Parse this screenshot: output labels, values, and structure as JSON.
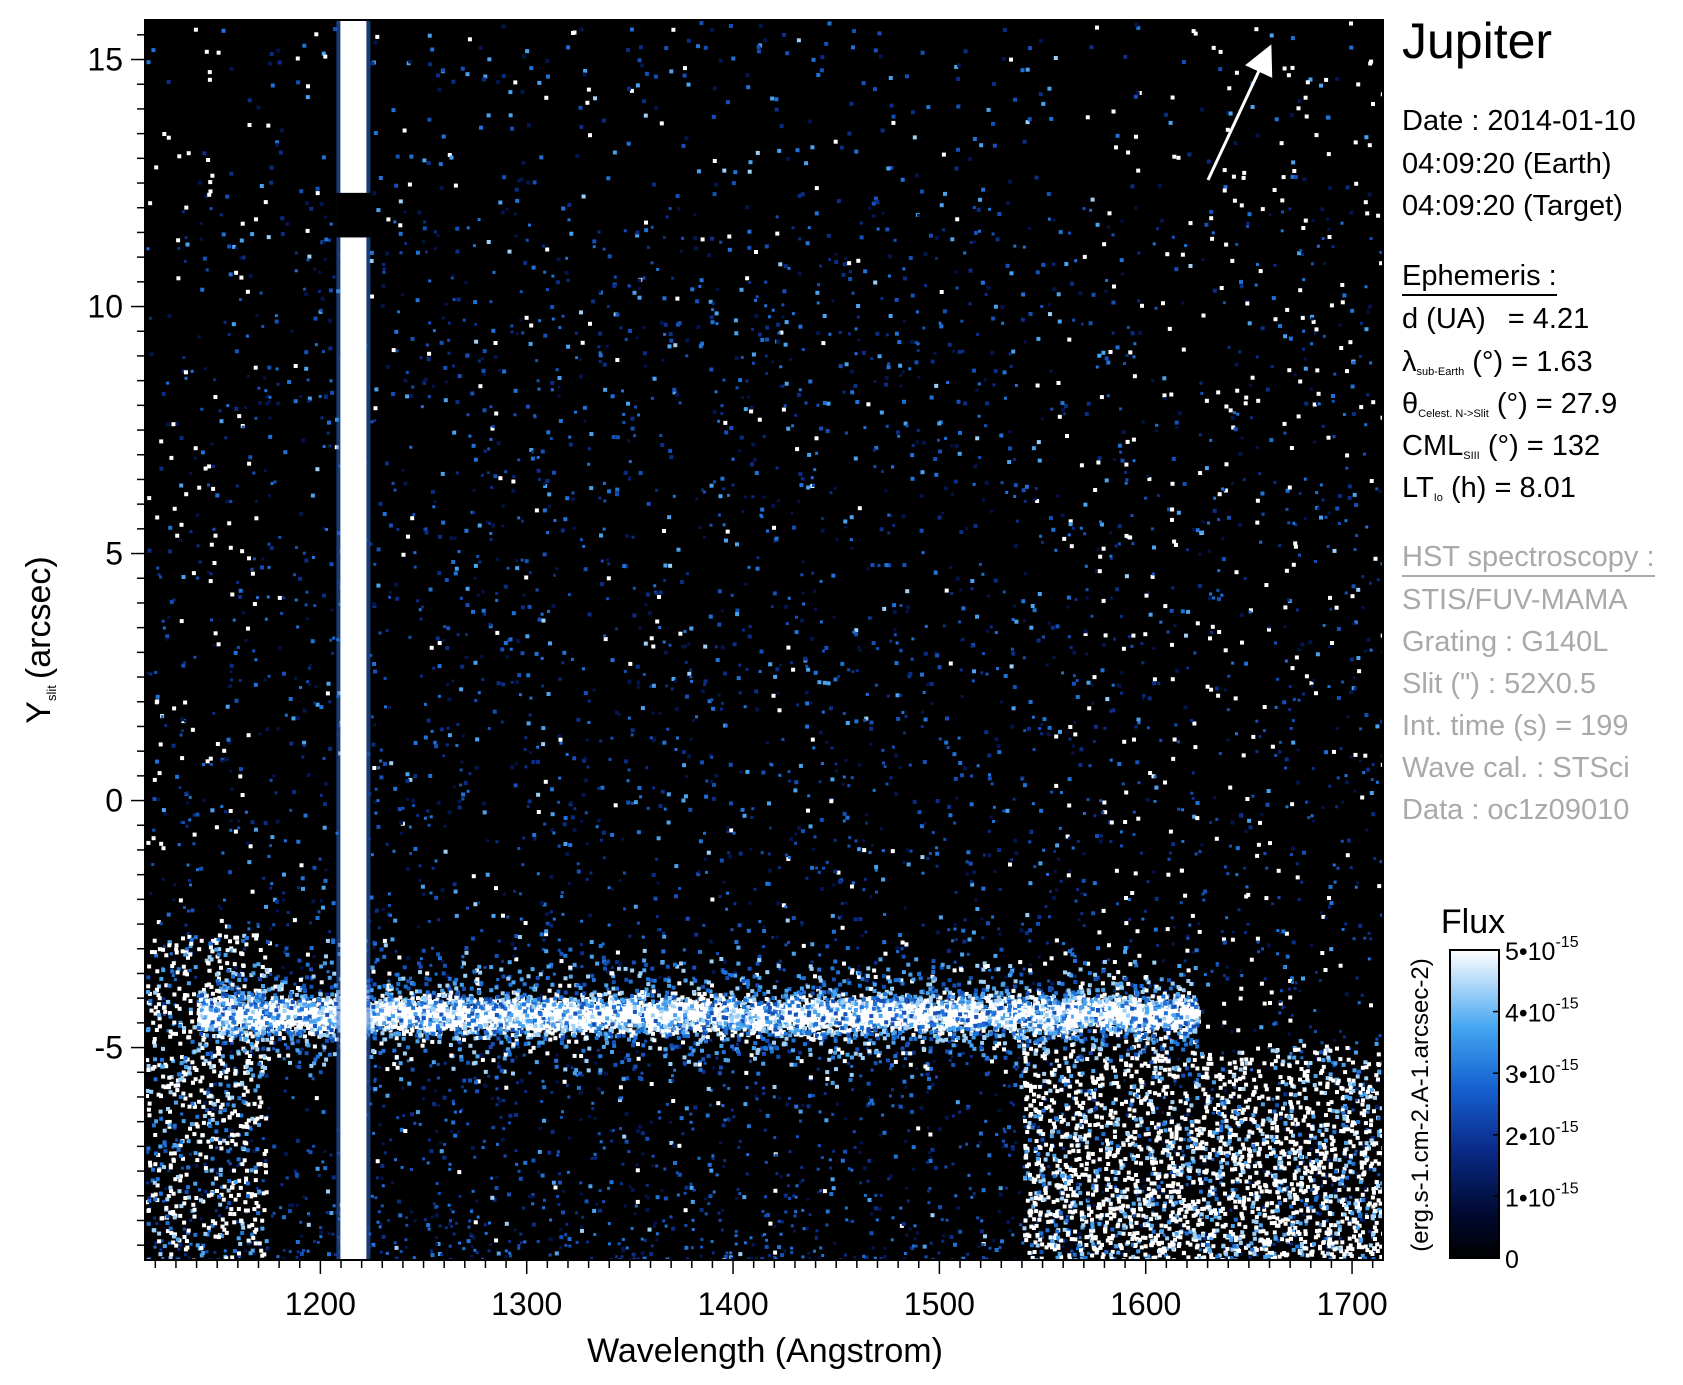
{
  "chart_data": {
    "type": "heatmap",
    "xlabel": "Wavelength (Angstrom)",
    "ylabel_main": "Y",
    "ylabel_sub": "slit",
    "ylabel_unit": "(arcsec)",
    "xlim": [
      1115,
      1715
    ],
    "ylim": [
      -9.3,
      15.8
    ],
    "x_ticks": [
      1200,
      1300,
      1400,
      1500,
      1600,
      1700
    ],
    "x_tick_labels": [
      "1200",
      "1300",
      "1400",
      "1500",
      "1600",
      "1700"
    ],
    "y_ticks": [
      15,
      10,
      5,
      0,
      -5
    ],
    "y_tick_labels": [
      "15",
      "10",
      "5",
      "0",
      "-5"
    ],
    "features": {
      "lyman_alpha_wavelength": 1216,
      "lyman_alpha_gap_y": [
        11.4,
        12.3
      ],
      "planet_band_y": -4.3,
      "planet_band_x": [
        1140,
        1625
      ]
    },
    "colorbar": {
      "title": "Flux",
      "unit": "(erg.s-1.cm-2.A-1.arcsec-2)",
      "range": [
        0,
        5e-15
      ],
      "tick_labels": [
        "5•10",
        "4•10",
        "3•10",
        "2•10",
        "1•10",
        "0"
      ],
      "tick_exponent": "-15",
      "colors": [
        "#000000",
        "#000a33",
        "#0a2a88",
        "#1560d0",
        "#44a6f0",
        "#b8dcfa",
        "#ffffff"
      ]
    }
  },
  "info": {
    "target": "Jupiter",
    "date_line": "Date : 2014-01-10",
    "time_earth": "04:09:20 (Earth)",
    "time_target": "04:09:20 (Target)",
    "ephemeris_header": "Ephemeris :",
    "ephemeris": {
      "d_label": "d (UA)",
      "d_value": "= 4.21",
      "lambda_symbol": "λ",
      "lambda_sub": "sub-Earth",
      "lambda_value": "(°) = 1.63",
      "theta_symbol": "θ",
      "theta_sub": "Celest. N->Slit",
      "theta_value": "(°) = 27.9",
      "cml_symbol": "CML",
      "cml_sub": "SIII",
      "cml_value": "(°) = 132",
      "lt_symbol": "LT",
      "lt_sub": "Io",
      "lt_value": "(h) = 8.01"
    },
    "hst_header": "HST spectroscopy :",
    "hst": {
      "instrument": "STIS/FUV-MAMA",
      "grating": "Grating : G140L",
      "slit": "Slit (\") : 52X0.5",
      "int_time": "Int. time (s) = 199",
      "wave_cal": "Wave cal. : STSci",
      "data_id": "Data : oc1z09010"
    }
  },
  "colors": {
    "background": "#000000",
    "bright": "#ffffff",
    "info_gray": "#a9a9a9"
  }
}
